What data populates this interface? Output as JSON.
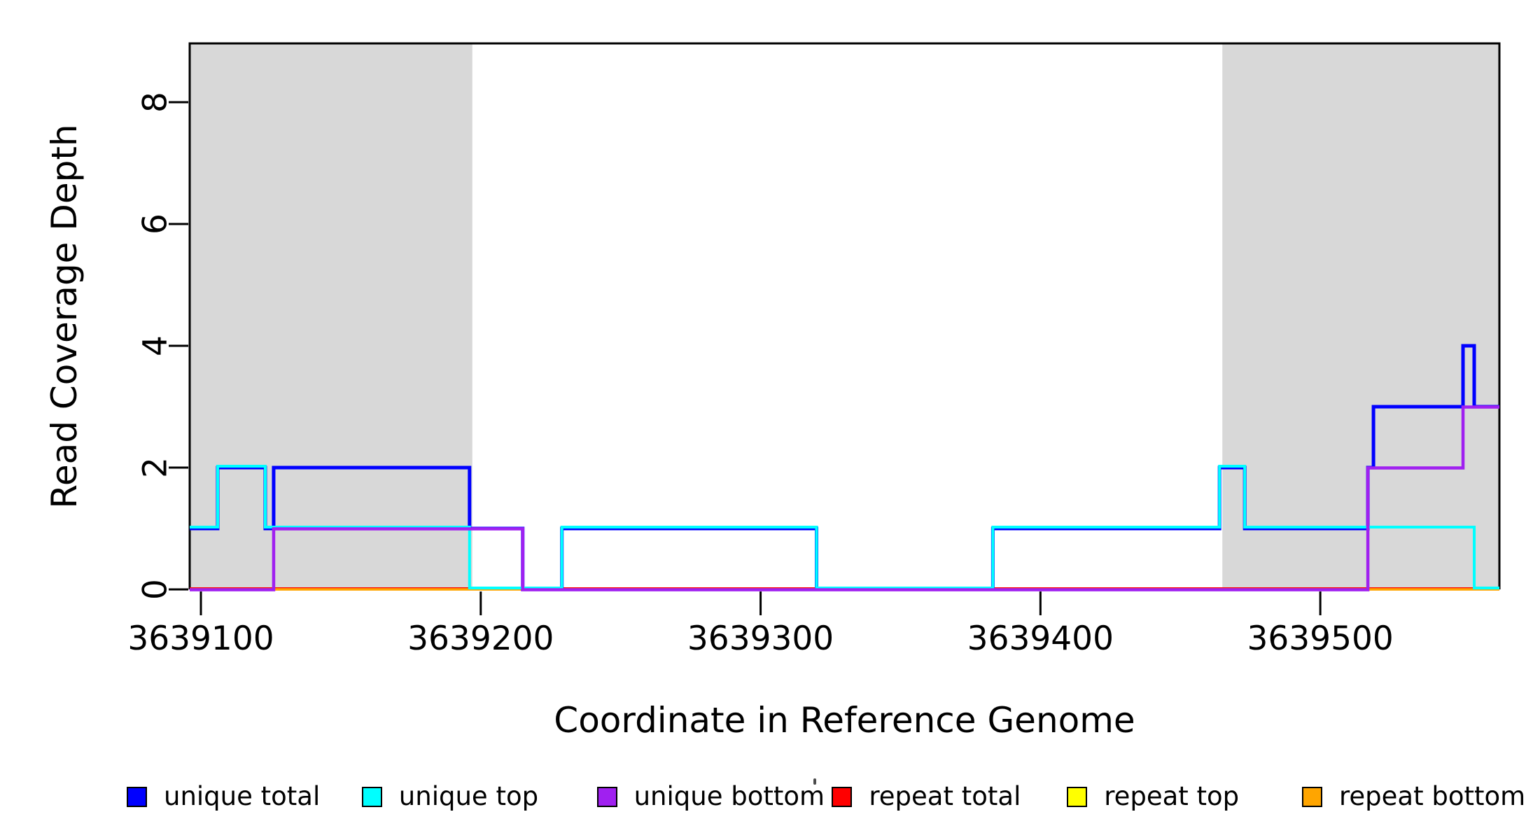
{
  "chart_data": {
    "type": "step-line-coverage",
    "title": "",
    "xlabel": "Coordinate in Reference Genome",
    "ylabel": "Read Coverage Depth",
    "xlim": [
      3639096,
      3639564
    ],
    "ylim": [
      0,
      8.97
    ],
    "x_ticks": [
      "3639100",
      "3639200",
      "3639300",
      "3639400",
      "3639500"
    ],
    "x_tick_values": [
      3639100,
      3639200,
      3639300,
      3639400,
      3639500
    ],
    "y_ticks": [
      "0",
      "2",
      "4",
      "6",
      "8"
    ],
    "y_tick_values": [
      0,
      2,
      4,
      6,
      8
    ],
    "grid": "off",
    "shade_color": "#D8D8D8",
    "box_color": "#000000",
    "shaded_regions": [
      {
        "name": "repeat-region-left",
        "from": 3639096,
        "to": 3639197
      },
      {
        "name": "repeat-region-right",
        "from": 3639465,
        "to": 3639564
      }
    ],
    "series": [
      {
        "name": "repeat total",
        "color": "#FF0000",
        "points": [
          [
            3639096,
            0
          ]
        ]
      },
      {
        "name": "repeat top",
        "color": "#FFFF00",
        "points": [
          [
            3639096,
            0
          ]
        ]
      },
      {
        "name": "repeat bottom",
        "color": "#FFA500",
        "points": [
          [
            3639096,
            0
          ]
        ]
      },
      {
        "name": "unique total",
        "color": "#0000FF",
        "points": [
          [
            3639096,
            1
          ],
          [
            3639106,
            2
          ],
          [
            3639123,
            1
          ],
          [
            3639126,
            2
          ],
          [
            3639196,
            1
          ],
          [
            3639215,
            0
          ],
          [
            3639229,
            1
          ],
          [
            3639320,
            0
          ],
          [
            3639383,
            1
          ],
          [
            3639464,
            2
          ],
          [
            3639473,
            1
          ],
          [
            3639517,
            2
          ],
          [
            3639519,
            3
          ],
          [
            3639551,
            4
          ],
          [
            3639555,
            3
          ]
        ]
      },
      {
        "name": "unique top",
        "color": "#00FFFF",
        "points": [
          [
            3639096,
            1
          ],
          [
            3639106,
            2
          ],
          [
            3639123,
            1
          ],
          [
            3639196,
            0
          ],
          [
            3639229,
            1
          ],
          [
            3639320,
            0
          ],
          [
            3639383,
            1
          ],
          [
            3639464,
            2
          ],
          [
            3639473,
            1
          ],
          [
            3639555,
            0
          ]
        ]
      },
      {
        "name": "unique bottom",
        "color": "#A020F0",
        "points": [
          [
            3639096,
            0
          ],
          [
            3639126,
            1
          ],
          [
            3639215,
            0
          ],
          [
            3639517,
            2
          ],
          [
            3639551,
            3
          ]
        ]
      }
    ],
    "legend": [
      {
        "label": "unique total",
        "color": "#0000FF"
      },
      {
        "label": "unique top",
        "color": "#00FFFF"
      },
      {
        "label": "unique bottom",
        "color": "#A020F0"
      },
      {
        "label": "repeat total",
        "color": "#FF0000"
      },
      {
        "label": "repeat top",
        "color": "#FFFF00"
      },
      {
        "label": "repeat bottom",
        "color": "#FFA500"
      }
    ],
    "legend_position": "bottom"
  }
}
